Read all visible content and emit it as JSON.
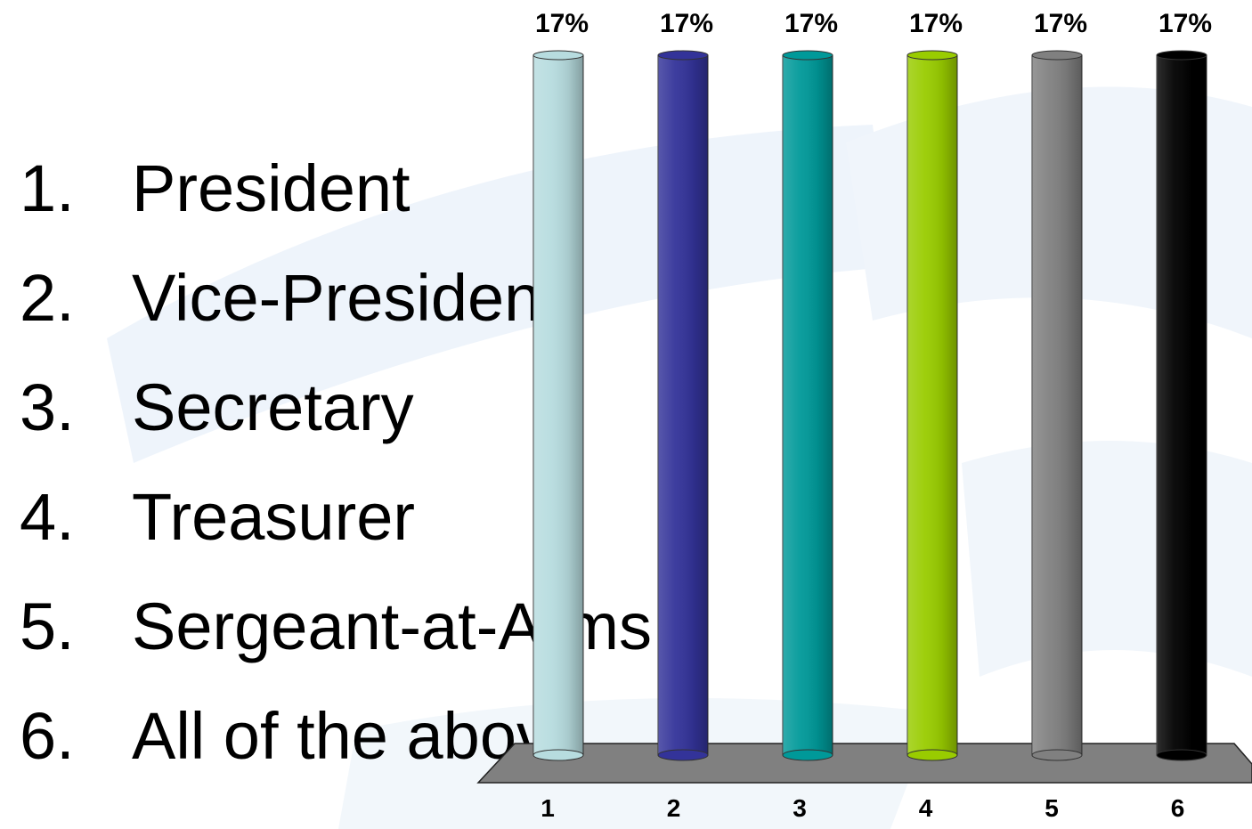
{
  "options": [
    {
      "number": "1.",
      "label": "President"
    },
    {
      "number": "2.",
      "label": "Vice-President"
    },
    {
      "number": "3.",
      "label": "Secretary"
    },
    {
      "number": "4.",
      "label": "Treasurer"
    },
    {
      "number": "5.",
      "label": "Sergeant-at-Arms"
    },
    {
      "number": "6.",
      "label": "All of the above"
    }
  ],
  "chart_data": {
    "type": "bar",
    "categories": [
      "1",
      "2",
      "3",
      "4",
      "5",
      "6"
    ],
    "values": [
      17,
      17,
      17,
      17,
      17,
      17
    ],
    "data_labels": [
      "17%",
      "17%",
      "17%",
      "17%",
      "17%",
      "17%"
    ],
    "value_unit": "%",
    "colors": [
      "#b7dcdf",
      "#333399",
      "#009999",
      "#99cc00",
      "#808080",
      "#000000"
    ],
    "ylim": [
      0,
      17
    ],
    "grid": false,
    "style": "3d-cylinder"
  }
}
